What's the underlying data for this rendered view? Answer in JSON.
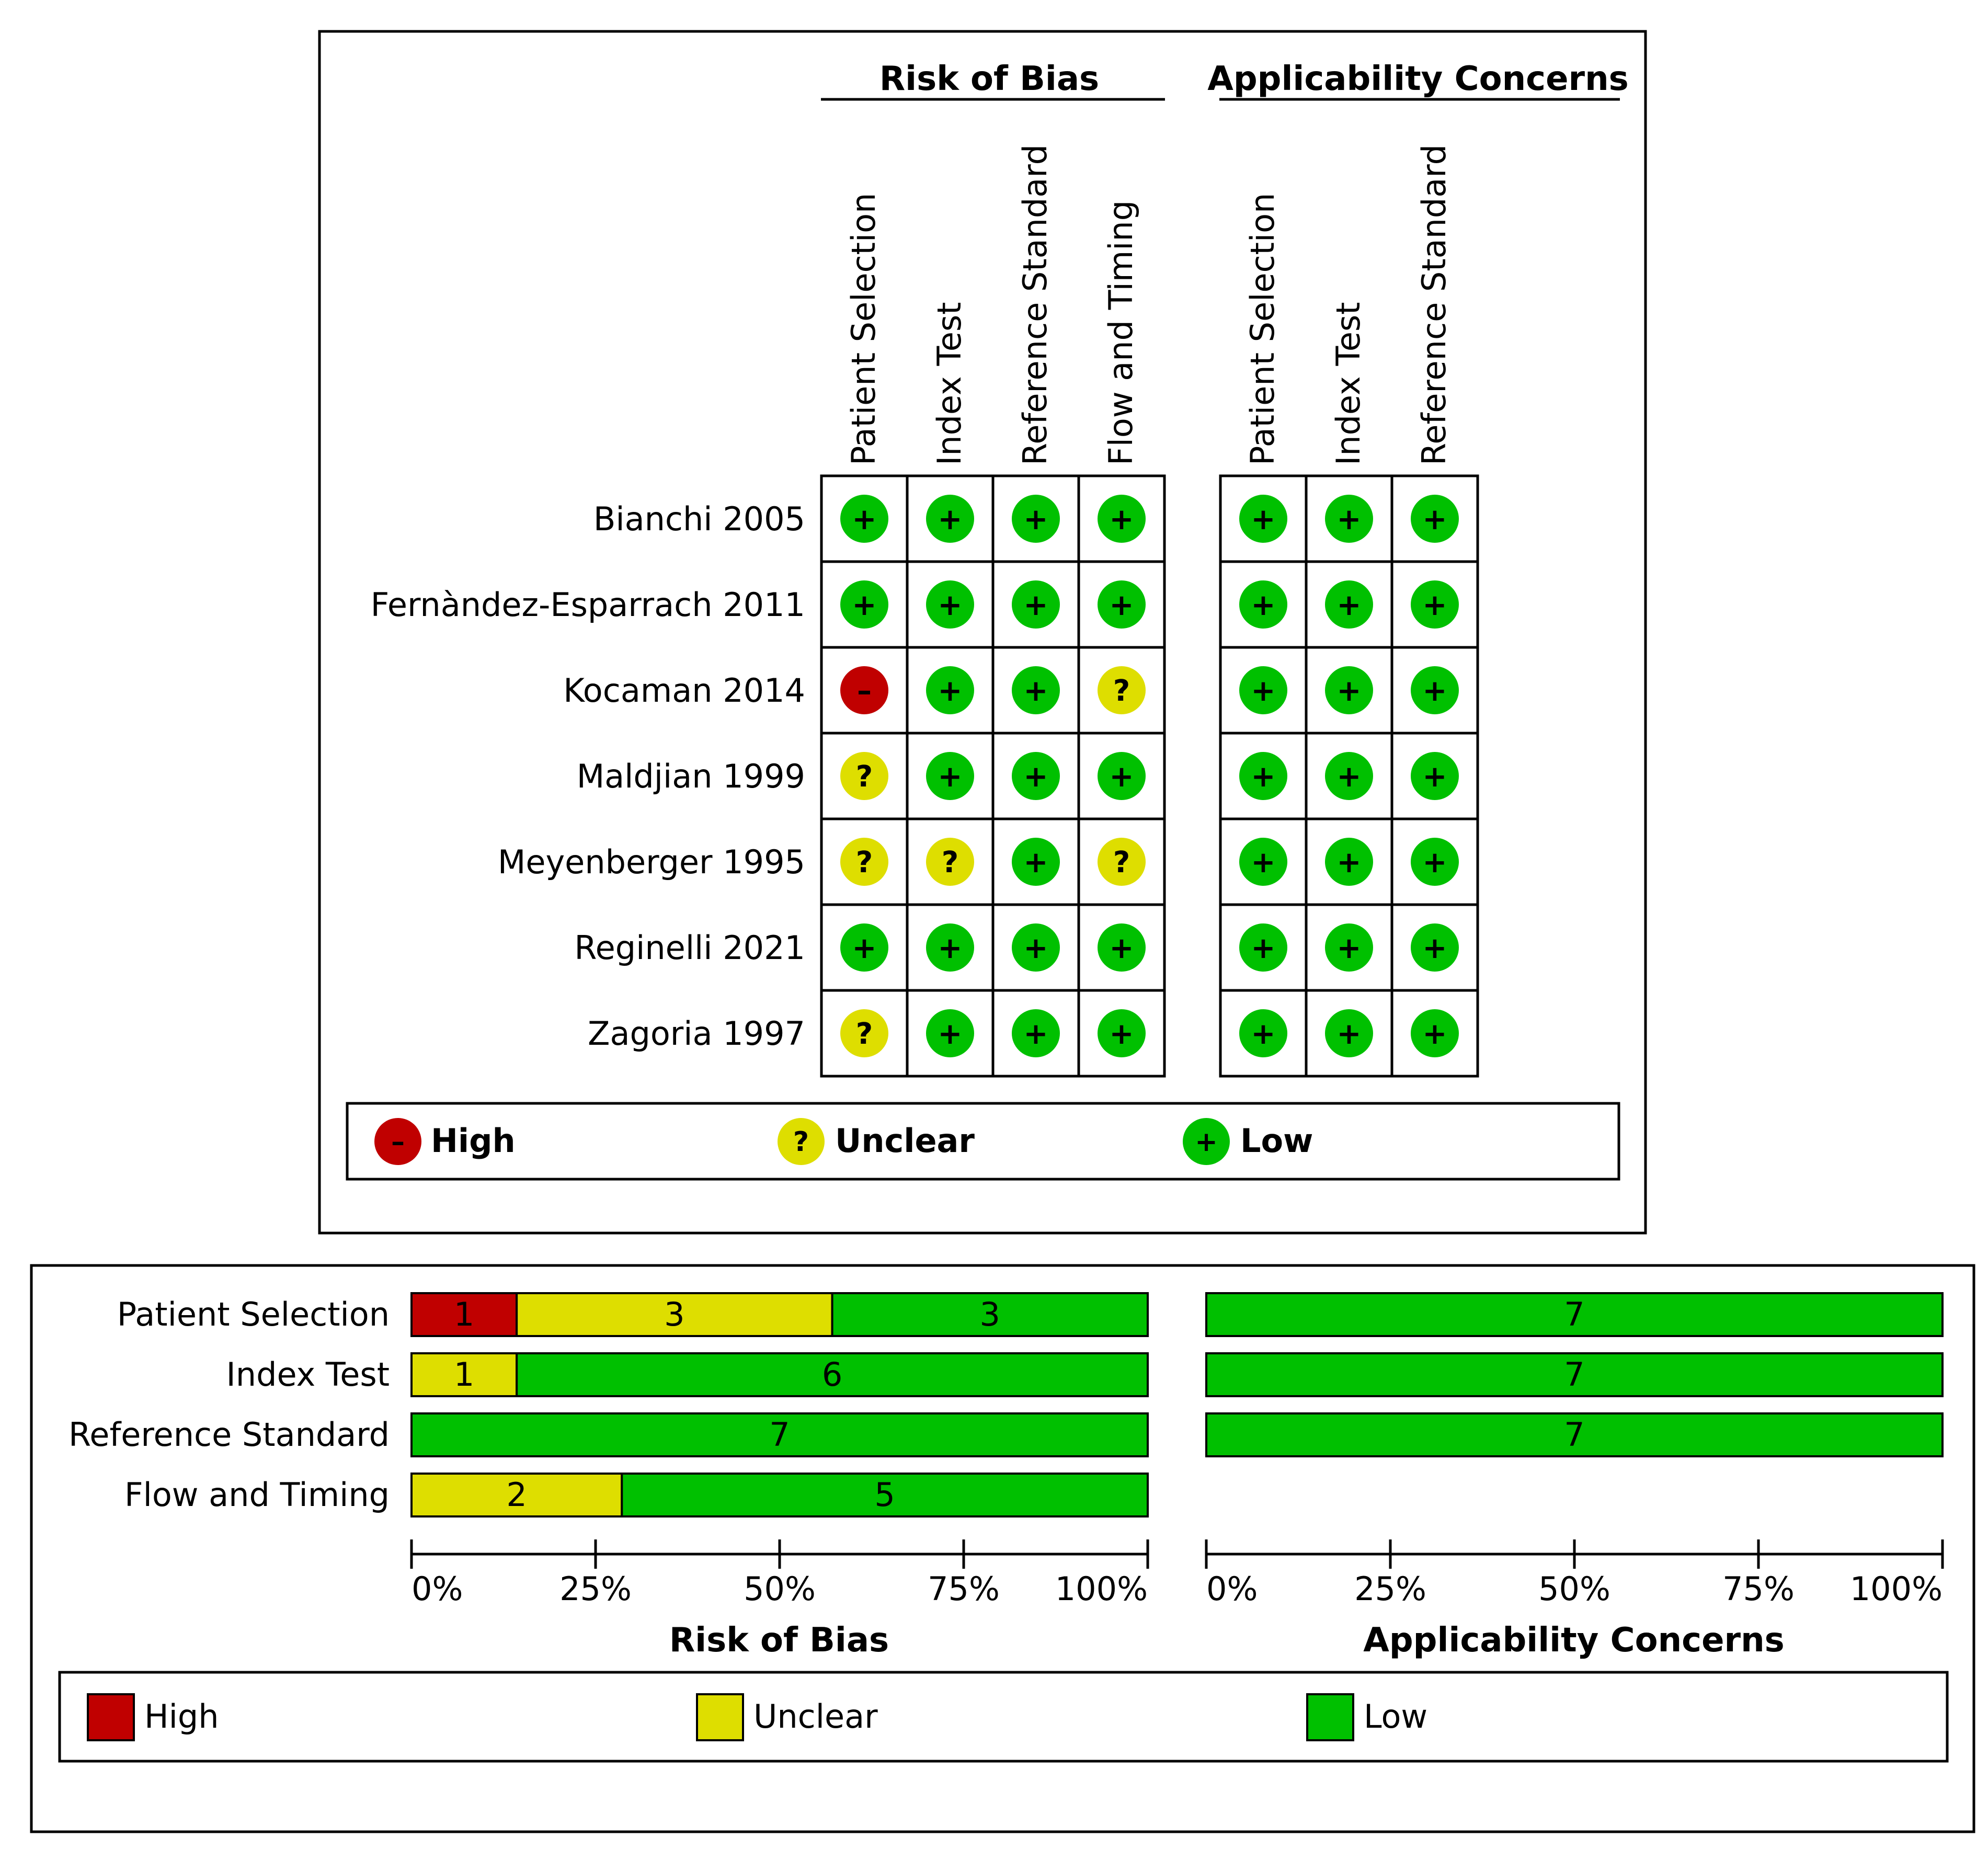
{
  "colors": {
    "high": "#c00000",
    "unclear": "#dede00",
    "low": "#00c000",
    "border": "#000000"
  },
  "symbols": {
    "high": "–",
    "unclear": "?",
    "low": "+"
  },
  "legend": {
    "high": "High",
    "unclear": "Unclear",
    "low": "Low"
  },
  "summary": {
    "group_titles": {
      "risk": "Risk of Bias",
      "applicability": "Applicability Concerns"
    },
    "risk_columns": [
      "Patient Selection",
      "Index Test",
      "Reference Standard",
      "Flow and Timing"
    ],
    "applicability_columns": [
      "Patient Selection",
      "Index Test",
      "Reference Standard"
    ],
    "studies": [
      {
        "name": "Bianchi 2005",
        "risk": [
          "low",
          "low",
          "low",
          "low"
        ],
        "applicability": [
          "low",
          "low",
          "low"
        ]
      },
      {
        "name": "Fernàndez-Esparrach 2011",
        "risk": [
          "low",
          "low",
          "low",
          "low"
        ],
        "applicability": [
          "low",
          "low",
          "low"
        ]
      },
      {
        "name": "Kocaman 2014",
        "risk": [
          "high",
          "low",
          "low",
          "unclear"
        ],
        "applicability": [
          "low",
          "low",
          "low"
        ]
      },
      {
        "name": "Maldjian 1999",
        "risk": [
          "unclear",
          "low",
          "low",
          "low"
        ],
        "applicability": [
          "low",
          "low",
          "low"
        ]
      },
      {
        "name": "Meyenberger 1995",
        "risk": [
          "unclear",
          "unclear",
          "low",
          "unclear"
        ],
        "applicability": [
          "low",
          "low",
          "low"
        ]
      },
      {
        "name": "Reginelli 2021",
        "risk": [
          "low",
          "low",
          "low",
          "low"
        ],
        "applicability": [
          "low",
          "low",
          "low"
        ]
      },
      {
        "name": "Zagoria 1997",
        "risk": [
          "unclear",
          "low",
          "low",
          "low"
        ],
        "applicability": [
          "low",
          "low",
          "low"
        ]
      }
    ]
  },
  "chart_data": {
    "type": "bar",
    "orientation": "horizontal",
    "stacked": true,
    "title": "",
    "categories": [
      "Patient Selection",
      "Index Test",
      "Reference Standard",
      "Flow and Timing"
    ],
    "ticks": [
      "0%",
      "25%",
      "50%",
      "75%",
      "100%"
    ],
    "xlim": [
      0,
      100
    ],
    "panels": [
      {
        "name": "Risk of Bias",
        "xlabel": "Risk of Bias",
        "series": [
          {
            "name": "High",
            "counts": [
              1,
              0,
              0,
              0
            ]
          },
          {
            "name": "Unclear",
            "counts": [
              3,
              1,
              0,
              2
            ]
          },
          {
            "name": "Low",
            "counts": [
              3,
              6,
              7,
              5
            ]
          }
        ]
      },
      {
        "name": "Applicability Concerns",
        "xlabel": "Applicability Concerns",
        "series": [
          {
            "name": "High",
            "counts": [
              0,
              0,
              0
            ]
          },
          {
            "name": "Unclear",
            "counts": [
              0,
              0,
              0
            ]
          },
          {
            "name": "Low",
            "counts": [
              7,
              7,
              7
            ]
          }
        ]
      }
    ]
  }
}
